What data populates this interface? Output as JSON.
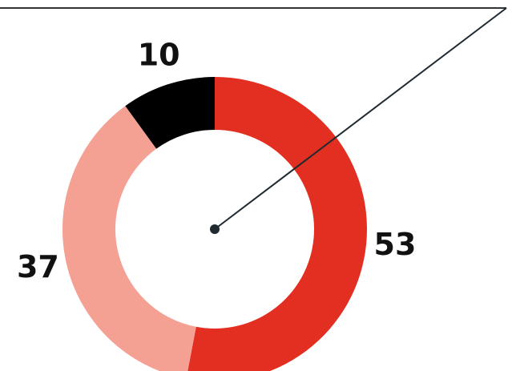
{
  "chart_data": {
    "type": "pie",
    "donut": true,
    "values": [
      53,
      37,
      10
    ],
    "colors": [
      "#e32f22",
      "#f4a194",
      "#000000"
    ],
    "start_angle": 0,
    "direction": "clockwise"
  }
}
